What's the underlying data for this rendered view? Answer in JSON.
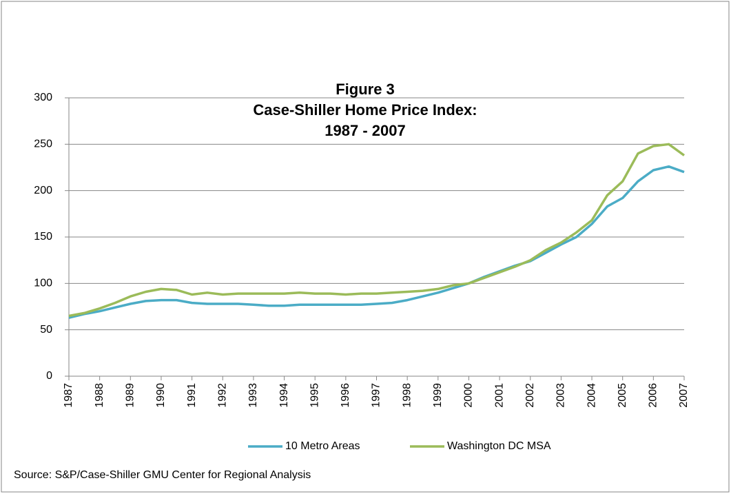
{
  "chart_data": {
    "type": "line",
    "title": [
      "Figure 3",
      "Case-Shiller Home Price Index:",
      "1987 - 2007"
    ],
    "source": "Source: S&P/Case-Shiller GMU Center for Regional Analysis",
    "x": [
      1987,
      1987.5,
      1988,
      1988.5,
      1989,
      1989.5,
      1990,
      1990.5,
      1991,
      1991.5,
      1992,
      1992.5,
      1993,
      1993.5,
      1994,
      1994.5,
      1995,
      1995.5,
      1996,
      1996.5,
      1997,
      1997.5,
      1998,
      1998.5,
      1999,
      1999.5,
      2000,
      2000.5,
      2001,
      2001.5,
      2002,
      2002.5,
      2003,
      2003.5,
      2004,
      2004.5,
      2005,
      2005.5,
      2006,
      2006.5,
      2007
    ],
    "series": [
      {
        "name": "10 Metro Areas",
        "color": "#4bacc6",
        "values": [
          63,
          67,
          70,
          74,
          78,
          81,
          82,
          82,
          79,
          78,
          78,
          78,
          77,
          76,
          76,
          77,
          77,
          77,
          77,
          77,
          78,
          79,
          82,
          86,
          90,
          95,
          100,
          107,
          113,
          119,
          124,
          133,
          142,
          150,
          164,
          183,
          192,
          210,
          222,
          226,
          220
        ]
      },
      {
        "name": "Washington DC MSA",
        "color": "#9bbb59",
        "values": [
          65,
          68,
          73,
          79,
          86,
          91,
          94,
          93,
          88,
          90,
          88,
          89,
          89,
          89,
          89,
          90,
          89,
          89,
          88,
          89,
          89,
          90,
          91,
          92,
          94,
          98,
          100,
          106,
          112,
          118,
          125,
          136,
          144,
          155,
          168,
          195,
          210,
          240,
          248,
          250,
          238
        ]
      }
    ],
    "xlim": [
      1987,
      2007
    ],
    "xticks": [
      1987,
      1988,
      1989,
      1990,
      1991,
      1992,
      1993,
      1994,
      1995,
      1996,
      1997,
      1998,
      1999,
      2000,
      2001,
      2002,
      2003,
      2004,
      2005,
      2006,
      2007
    ],
    "ylim": [
      0,
      300
    ],
    "yticks": [
      0,
      50,
      100,
      150,
      200,
      250,
      300
    ],
    "grid": true,
    "legend": "bottom"
  }
}
